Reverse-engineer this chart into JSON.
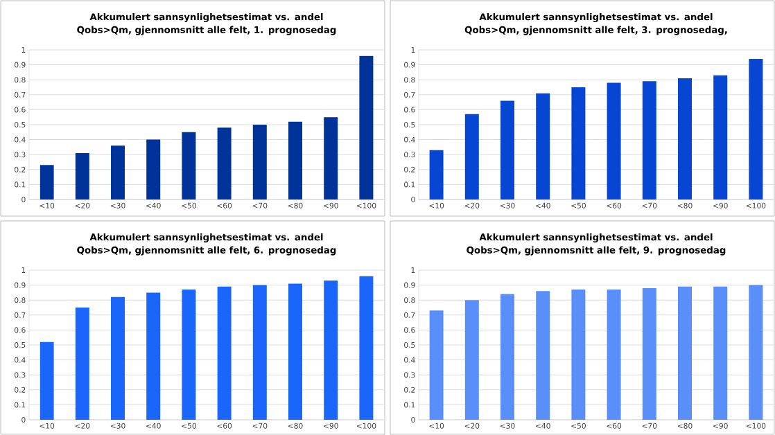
{
  "chart_data": [
    {
      "type": "bar",
      "title": "Akkumulert sannsynlighetsestimat vs. andel Qobs>Qm, gjennomsnitt alle felt, 1. prognosedag",
      "categories": [
        "<10",
        "<20",
        "<30",
        "<40",
        "<50",
        "<60",
        "<70",
        "<80",
        "<90",
        "<100"
      ],
      "values": [
        0.23,
        0.31,
        0.36,
        0.4,
        0.45,
        0.48,
        0.5,
        0.52,
        0.55,
        0.96
      ],
      "color": "#003399",
      "ylim": [
        0,
        1
      ],
      "yticks": [
        0,
        0.1,
        0.2,
        0.3,
        0.4,
        0.5,
        0.6,
        0.7,
        0.8,
        0.9,
        1
      ],
      "grid": "y"
    },
    {
      "type": "bar",
      "title": "Akkumulert sannsynlighetsestimat vs. andel Qobs>Qm, gjennomsnitt alle felt, 3. prognosedag,",
      "categories": [
        "<10",
        "<20",
        "<30",
        "<40",
        "<50",
        "<60",
        "<70",
        "<80",
        "<90",
        "<100"
      ],
      "values": [
        0.33,
        0.57,
        0.66,
        0.71,
        0.75,
        0.78,
        0.79,
        0.81,
        0.83,
        0.94
      ],
      "color": "#0646d2",
      "ylim": [
        0,
        1
      ],
      "yticks": [
        0,
        0.1,
        0.2,
        0.3,
        0.4,
        0.5,
        0.6,
        0.7,
        0.8,
        0.9,
        1
      ],
      "grid": "y"
    },
    {
      "type": "bar",
      "title": "Akkumulert sannsynlighetsestimat vs. andel Qobs>Qm, gjennomsnitt alle felt, 6. prognosedag",
      "categories": [
        "<10",
        "<20",
        "<30",
        "<40",
        "<50",
        "<60",
        "<70",
        "<80",
        "<90",
        "<100"
      ],
      "values": [
        0.52,
        0.75,
        0.82,
        0.85,
        0.87,
        0.89,
        0.9,
        0.91,
        0.93,
        0.96
      ],
      "color": "#1a66fa",
      "ylim": [
        0,
        1
      ],
      "yticks": [
        0,
        0.1,
        0.2,
        0.3,
        0.4,
        0.5,
        0.6,
        0.7,
        0.8,
        0.9,
        1
      ],
      "grid": "y"
    },
    {
      "type": "bar",
      "title": "Akkumulert sannsynlighetsestimat vs. andel Qobs>Qm, gjennomsnitt alle felt, 9. prognosedag",
      "categories": [
        "<10",
        "<20",
        "<30",
        "<40",
        "<50",
        "<60",
        "<70",
        "<80",
        "<90",
        "<100"
      ],
      "values": [
        0.73,
        0.8,
        0.84,
        0.86,
        0.87,
        0.87,
        0.88,
        0.89,
        0.89,
        0.9
      ],
      "color": "#5a8ffa",
      "ylim": [
        0,
        1
      ],
      "yticks": [
        0,
        0.1,
        0.2,
        0.3,
        0.4,
        0.5,
        0.6,
        0.7,
        0.8,
        0.9,
        1
      ],
      "grid": "y"
    }
  ]
}
